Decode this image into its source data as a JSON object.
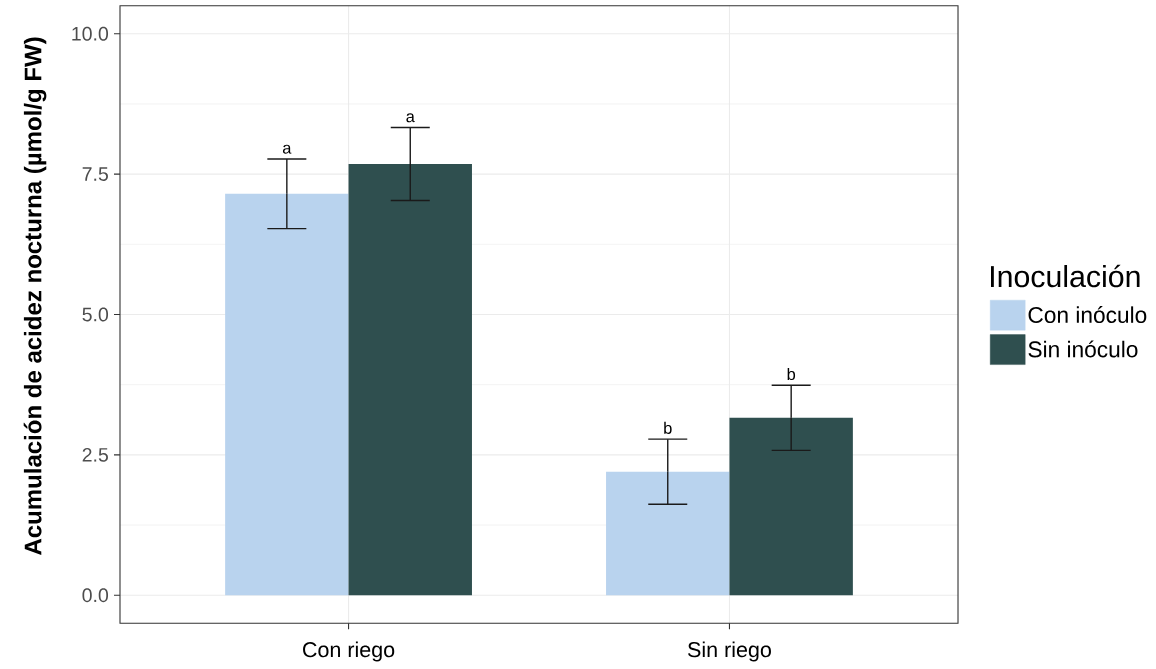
{
  "chart_data": {
    "type": "bar",
    "ylabel": "Acumulación de acidez nocturna (µmol/g FW)",
    "legend_title": "Inoculación",
    "categories": [
      "Con riego",
      "Sin riego"
    ],
    "series": [
      {
        "name": "Con inóculo",
        "color": "#b9d3ee",
        "values": [
          7.15,
          2.2
        ],
        "errors": [
          0.62,
          0.58
        ]
      },
      {
        "name": "Sin inóculo",
        "color": "#2f4f4f",
        "values": [
          7.68,
          3.16
        ],
        "errors": [
          0.65,
          0.58
        ]
      }
    ],
    "ylim": [
      -0.5,
      10.5
    ],
    "yticks": [
      {
        "value": 0,
        "label": "0.0"
      },
      2.5,
      {
        "value": 5,
        "label": "5.0"
      },
      7.5,
      {
        "value": 10,
        "label": "10.0"
      }
    ],
    "grid": true,
    "legend": "right",
    "annotations": [
      "a",
      "a",
      "b",
      "b"
    ]
  }
}
